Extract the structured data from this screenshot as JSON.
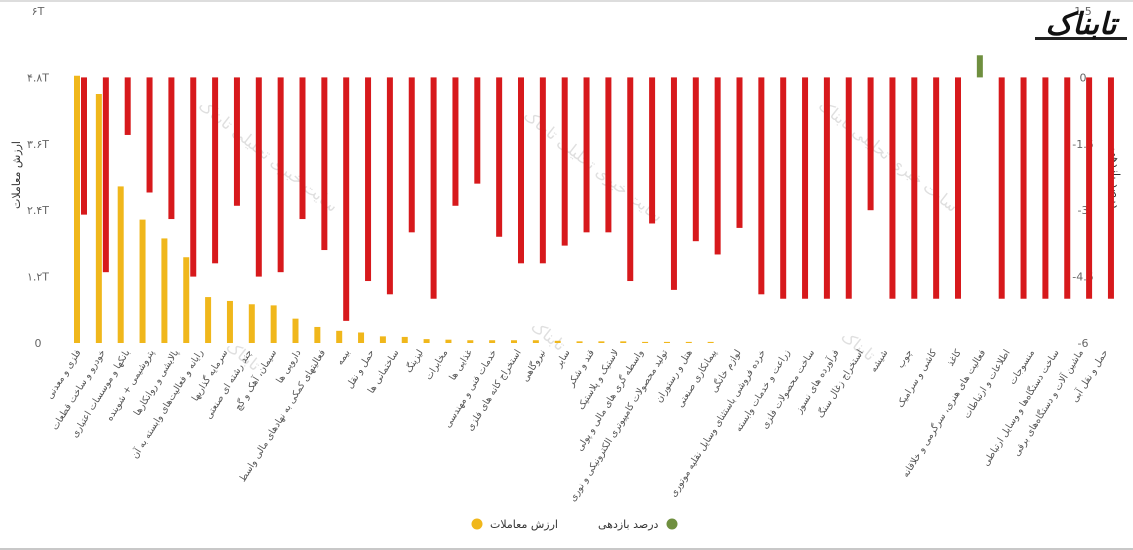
{
  "logo": {
    "text": "تابناک"
  },
  "chart_data": {
    "type": "bar",
    "left_axis": {
      "title": "ارزش معاملات",
      "ticks": [
        {
          "value": 0,
          "label": "0"
        },
        {
          "value": 1.2,
          "label": "۱.۲T"
        },
        {
          "value": 2.4,
          "label": "۲.۴T"
        },
        {
          "value": 3.6,
          "label": "۳.۶T"
        },
        {
          "value": 4.8,
          "label": "۴.۸T"
        },
        {
          "value": 6,
          "label": "۶T"
        }
      ],
      "ylim": [
        0,
        6
      ]
    },
    "right_axis": {
      "title": "درصد بازدهی",
      "ticks": [
        {
          "value": 1.5,
          "label": "1.5"
        },
        {
          "value": 0,
          "label": "0"
        },
        {
          "value": -1.5,
          "label": "-1.5"
        },
        {
          "value": -3,
          "label": "-3"
        },
        {
          "value": -4.5,
          "label": "-4.5"
        },
        {
          "value": -6,
          "label": "-6"
        }
      ],
      "ylim": [
        -6,
        1.5
      ]
    },
    "categories": [
      "فلزی و معدنی",
      "خودرو و ساخت قطعات",
      "بانکها و موسسات اعتباری",
      "پتروشیمی + شوینده",
      "پالایشی و روانکارها",
      "رایانه و فعالیت‌های وابسته به آن",
      "سرمایه گذاریها",
      "چند رشته ای صنعتی",
      "سیمان",
      "آهن و گچ",
      "دارویی ها",
      "فعالیتهای کمکی به نهادهای مالی واسط",
      "بیمه",
      "حمل و نقل",
      "ساختمانی ها",
      "لیزینگ",
      "مخابرات",
      "غذایی ها",
      "خدمات فنی و مهندسی",
      "استخراج کانه های فلزی",
      "نیروگاهی",
      "سایر",
      "قند و شکر",
      "لاستیک و پلاستیک",
      "واسطه گری های مالی و پولی",
      "ماشین آلات و تجهیزات",
      "تولید محصولات کامپیوتری الکترونیکی و نوری",
      "هتل و رستوران",
      "پیمانکاری صنعتی",
      "لوازم خانگی",
      "خرده فروشی باستثنای وسایل نقلیه موتوری",
      "زراعت و خدمات وابسته",
      "ساخت محصولات فلزی",
      "فرآورده های نسوز",
      "سایر واسطه گریهای مالی",
      "تجارت عمده فروشی به جز وسایل نقلیه موتور",
      "استخراج زغال سنگ",
      "شیشه",
      "چوب",
      "کاشی و سرامیک",
      "تجارت عمده و خرده فروشی وسایل نقلیه موتوری",
      "کاغذ",
      "فعالیت های هنری، سرگرمی و خلاقانه",
      "اطلاعات و ارتباطات",
      "منسوجات",
      "ساخت دستگاه‌ها و وسایل ارتباطی",
      "ماشین آلات و دستگاه‌های برقی",
      "حمل و نقل آبی"
    ],
    "tick_labels": [
      "فلزی و معدنی",
      "خودرو و ساخت قطعات",
      "بانکها و موسسات اعتباری",
      "پتروشیمی + شوینده",
      "پالایشی و روانکارها",
      "رایانه و فعالیت‌های وابسته به آن",
      "سرمایه گذاریها",
      "چند رشته ای صنعتی",
      "سیمان، آهک و گچ",
      "دارویی ها",
      "فعالیتهای کمکی به نهادهای مالی واسط",
      "بیمه",
      "حمل و نقل",
      "ساختمانی ها",
      "لیزینگ",
      "مخابرات",
      "غذایی ها",
      "خدمات فنی و مهندسی",
      "استخراج کانه های فلزی",
      "نیروگاهی",
      "سایر",
      "قند و شکر",
      "لاستیک و پلاستیک",
      "واسطه گری های مالی و پولی",
      "تولید محصولات کامپیوتری الکترونیکی و نوری",
      "هتل و رستوران",
      "پیمانکاری صنعتی",
      "لوازم خانگی",
      "خرده فروشی باستثنای وسایل نقلیه موتوری",
      "زراعت و خدمات وابسته",
      "ساخت محصولات فلزی",
      "فرآورده های نسوز",
      "استخراج زغال سنگ",
      "شیشه",
      "چوب",
      "کاشی و سرامیک",
      "کاغذ",
      "فعالیت های هنری، سرگرمی و خلاقانه",
      "اطلاعات و ارتباطات",
      "منسوجات",
      "ساخت دستگاه‌ها و وسایل ارتباطی",
      "ماشین آلات و دستگاه‌های برقی",
      "حمل و نقل آبی"
    ],
    "series": [
      {
        "name": "ارزش معاملات",
        "axis": "left",
        "color": "#f0b71b",
        "values": [
          4.83,
          4.5,
          2.83,
          2.23,
          1.89,
          1.55,
          0.83,
          0.76,
          0.7,
          0.68,
          0.44,
          0.29,
          0.22,
          0.19,
          0.12,
          0.11,
          0.07,
          0.06,
          0.05,
          0.05,
          0.05,
          0.05,
          0.04,
          0.03,
          0.03,
          0.03,
          0.02,
          0.02,
          0.02,
          0.02,
          0,
          0,
          0,
          0,
          0,
          0,
          0,
          0,
          0,
          0,
          0,
          0,
          0,
          0,
          0,
          0,
          0,
          0
        ]
      },
      {
        "name": "درصد بازدهی",
        "axis": "right",
        "color_positive": "#6f8f3f",
        "color_negative": "#d7191c",
        "values": [
          -3.1,
          -4.4,
          -1.3,
          -2.6,
          -3.2,
          -4.5,
          -4.2,
          -2.9,
          -4.5,
          -4.4,
          -3.2,
          -3.9,
          -5.5,
          -4.6,
          -4.9,
          -3.5,
          -5.0,
          -2.9,
          -2.4,
          -3.6,
          -4.2,
          -4.2,
          -3.8,
          -3.5,
          -3.5,
          -4.6,
          -3.3,
          -4.8,
          -3.7,
          -4.0,
          -3.4,
          -4.9,
          -5.0,
          -5.0,
          -5.0,
          -5.0,
          -3.0,
          -5.0,
          -5.0,
          -5.0,
          -5.0,
          0.5,
          -5.0,
          -5.0,
          -5.0,
          -5.0,
          -5.0,
          -5.0
        ]
      }
    ],
    "legend": {
      "position": "bottom-center",
      "items": [
        {
          "label": "ارزش معاملات",
          "color": "#f0b71b"
        },
        {
          "label": "درصد بازدهی",
          "color": "#6f8f3f"
        }
      ]
    },
    "watermark": "سایت خبری تحلیلی تابناک",
    "watermark_short": "تابناک",
    "grid": false
  }
}
